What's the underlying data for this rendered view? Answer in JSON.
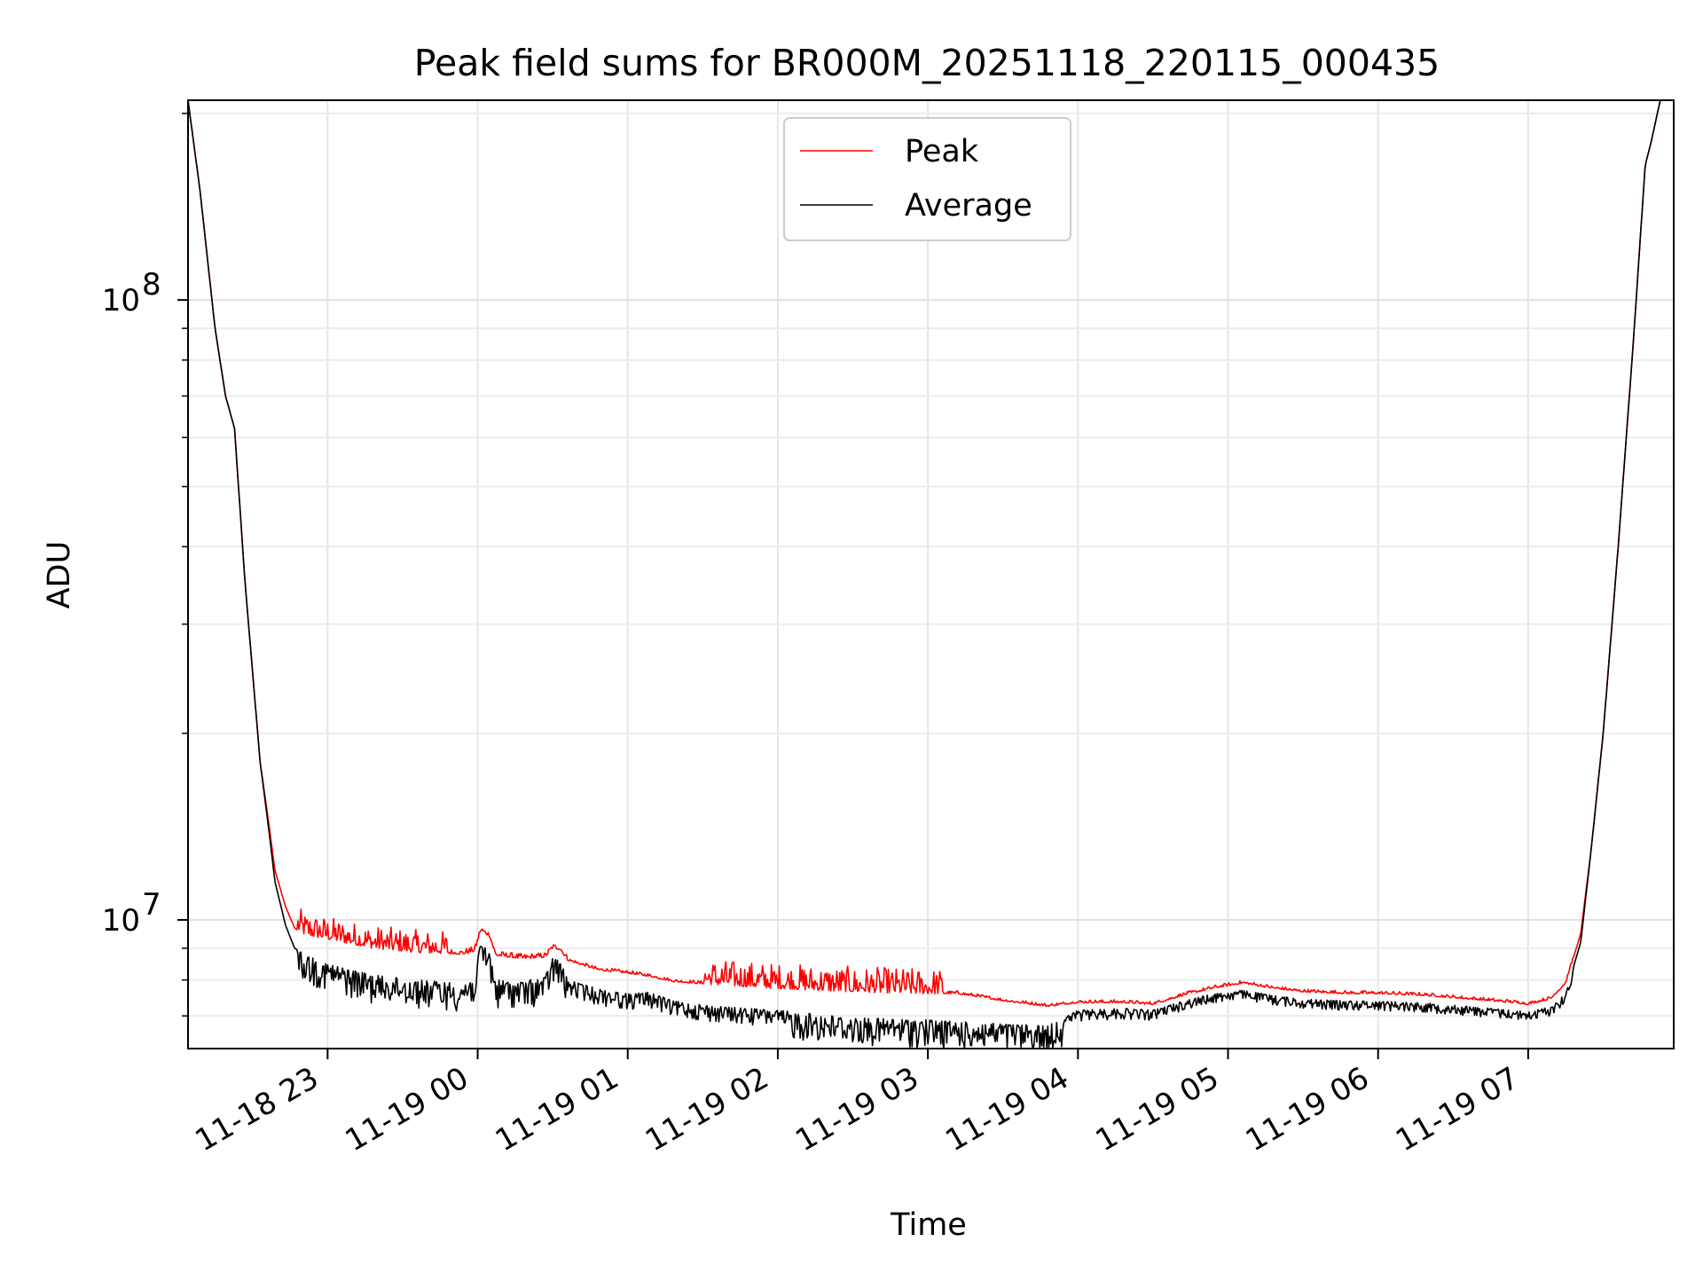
{
  "chart_data": {
    "type": "line",
    "title": "Peak field sums for BR000M_20251118_220115_000435",
    "xlabel": "Time",
    "ylabel": "ADU",
    "yscale": "log",
    "ylim": [
      6200000,
      210000000
    ],
    "xlim": [
      -0.93,
      8.97
    ],
    "x_unit": "hours after 11-18 23:00",
    "x_ticks": [
      {
        "value": 0,
        "label": "11-18 23"
      },
      {
        "value": 1,
        "label": "11-19 00"
      },
      {
        "value": 2,
        "label": "11-19 01"
      },
      {
        "value": 3,
        "label": "11-19 02"
      },
      {
        "value": 4,
        "label": "11-19 03"
      },
      {
        "value": 5,
        "label": "11-19 04"
      },
      {
        "value": 6,
        "label": "11-19 05"
      },
      {
        "value": 7,
        "label": "11-19 06"
      },
      {
        "value": 8,
        "label": "11-19 07"
      }
    ],
    "y_ticks": [
      {
        "value": 10000000,
        "base": "10",
        "exp": "7"
      },
      {
        "value": 100000000,
        "base": "10",
        "exp": "8"
      }
    ],
    "grid": true,
    "legend": {
      "position": "top-center",
      "entries": [
        "Peak",
        "Average"
      ]
    },
    "series": [
      {
        "name": "Peak",
        "color": "#ff0000",
        "noise": "spiky_up",
        "points": [
          [
            -0.93,
            210000000
          ],
          [
            -0.85,
            150000000
          ],
          [
            -0.75,
            90000000
          ],
          [
            -0.68,
            70000000
          ],
          [
            -0.62,
            62000000
          ],
          [
            -0.55,
            35000000
          ],
          [
            -0.45,
            18000000
          ],
          [
            -0.4,
            14800000
          ],
          [
            -0.35,
            12000000
          ],
          [
            -0.28,
            10500000
          ],
          [
            -0.22,
            9700000
          ],
          [
            -0.15,
            9450000
          ],
          [
            0,
            9300000
          ],
          [
            0.3,
            9000000
          ],
          [
            0.6,
            8850000
          ],
          [
            0.9,
            8800000
          ],
          [
            0.98,
            8900000
          ],
          [
            1.02,
            9600000
          ],
          [
            1.08,
            9400000
          ],
          [
            1.12,
            8750000
          ],
          [
            1.3,
            8650000
          ],
          [
            1.45,
            8700000
          ],
          [
            1.5,
            9000000
          ],
          [
            1.55,
            8950000
          ],
          [
            1.6,
            8600000
          ],
          [
            1.8,
            8300000
          ],
          [
            2.0,
            8200000
          ],
          [
            2.15,
            8100000
          ],
          [
            2.3,
            7950000
          ],
          [
            2.6,
            7850000
          ],
          [
            3.0,
            7750000
          ],
          [
            3.5,
            7650000
          ],
          [
            4.0,
            7600000
          ],
          [
            4.2,
            7600000
          ],
          [
            4.5,
            7400000
          ],
          [
            4.8,
            7250000
          ],
          [
            5.0,
            7350000
          ],
          [
            5.3,
            7350000
          ],
          [
            5.5,
            7300000
          ],
          [
            5.7,
            7550000
          ],
          [
            5.9,
            7750000
          ],
          [
            6.1,
            7900000
          ],
          [
            6.3,
            7750000
          ],
          [
            6.5,
            7650000
          ],
          [
            6.8,
            7600000
          ],
          [
            7.0,
            7600000
          ],
          [
            7.3,
            7550000
          ],
          [
            7.6,
            7450000
          ],
          [
            7.9,
            7350000
          ],
          [
            8.0,
            7300000
          ],
          [
            8.15,
            7450000
          ],
          [
            8.25,
            7900000
          ],
          [
            8.35,
            9500000
          ],
          [
            8.42,
            13000000
          ],
          [
            8.5,
            20000000
          ],
          [
            8.6,
            40000000
          ],
          [
            8.7,
            85000000
          ],
          [
            8.78,
            165000000
          ],
          [
            8.82,
            180000000
          ],
          [
            8.88,
            210000000
          ],
          [
            8.97,
            210000000
          ]
        ]
      },
      {
        "name": "Average",
        "color": "#000000",
        "noise": "spiky_down",
        "points": [
          [
            -0.93,
            210000000
          ],
          [
            -0.85,
            150000000
          ],
          [
            -0.75,
            90000000
          ],
          [
            -0.68,
            70000000
          ],
          [
            -0.62,
            62000000
          ],
          [
            -0.55,
            35000000
          ],
          [
            -0.45,
            18000000
          ],
          [
            -0.4,
            14500000
          ],
          [
            -0.35,
            11500000
          ],
          [
            -0.28,
            9800000
          ],
          [
            -0.22,
            9000000
          ],
          [
            -0.15,
            8800000
          ],
          [
            0,
            8500000
          ],
          [
            0.3,
            8150000
          ],
          [
            0.6,
            8000000
          ],
          [
            0.9,
            7900000
          ],
          [
            0.98,
            8100000
          ],
          [
            1.02,
            9200000
          ],
          [
            1.08,
            8900000
          ],
          [
            1.12,
            8000000
          ],
          [
            1.3,
            7950000
          ],
          [
            1.45,
            8100000
          ],
          [
            1.5,
            8700000
          ],
          [
            1.55,
            8600000
          ],
          [
            1.6,
            8000000
          ],
          [
            1.8,
            7750000
          ],
          [
            2.0,
            7600000
          ],
          [
            2.15,
            7650000
          ],
          [
            2.3,
            7400000
          ],
          [
            2.6,
            7250000
          ],
          [
            3.0,
            7150000
          ],
          [
            3.5,
            6950000
          ],
          [
            4.0,
            6900000
          ],
          [
            4.2,
            6850000
          ],
          [
            4.5,
            6800000
          ],
          [
            4.8,
            6750000
          ],
          [
            5.0,
            7150000
          ],
          [
            5.3,
            7200000
          ],
          [
            5.5,
            7150000
          ],
          [
            5.7,
            7400000
          ],
          [
            5.9,
            7600000
          ],
          [
            6.1,
            7700000
          ],
          [
            6.3,
            7550000
          ],
          [
            6.5,
            7450000
          ],
          [
            6.8,
            7400000
          ],
          [
            7.0,
            7400000
          ],
          [
            7.3,
            7350000
          ],
          [
            7.6,
            7250000
          ],
          [
            7.9,
            7150000
          ],
          [
            8.0,
            7100000
          ],
          [
            8.15,
            7250000
          ],
          [
            8.25,
            7600000
          ],
          [
            8.35,
            9200000
          ],
          [
            8.42,
            13000000
          ],
          [
            8.5,
            20000000
          ],
          [
            8.6,
            40000000
          ],
          [
            8.7,
            85000000
          ],
          [
            8.78,
            165000000
          ],
          [
            8.82,
            180000000
          ],
          [
            8.88,
            210000000
          ],
          [
            8.97,
            210000000
          ]
        ]
      }
    ]
  }
}
